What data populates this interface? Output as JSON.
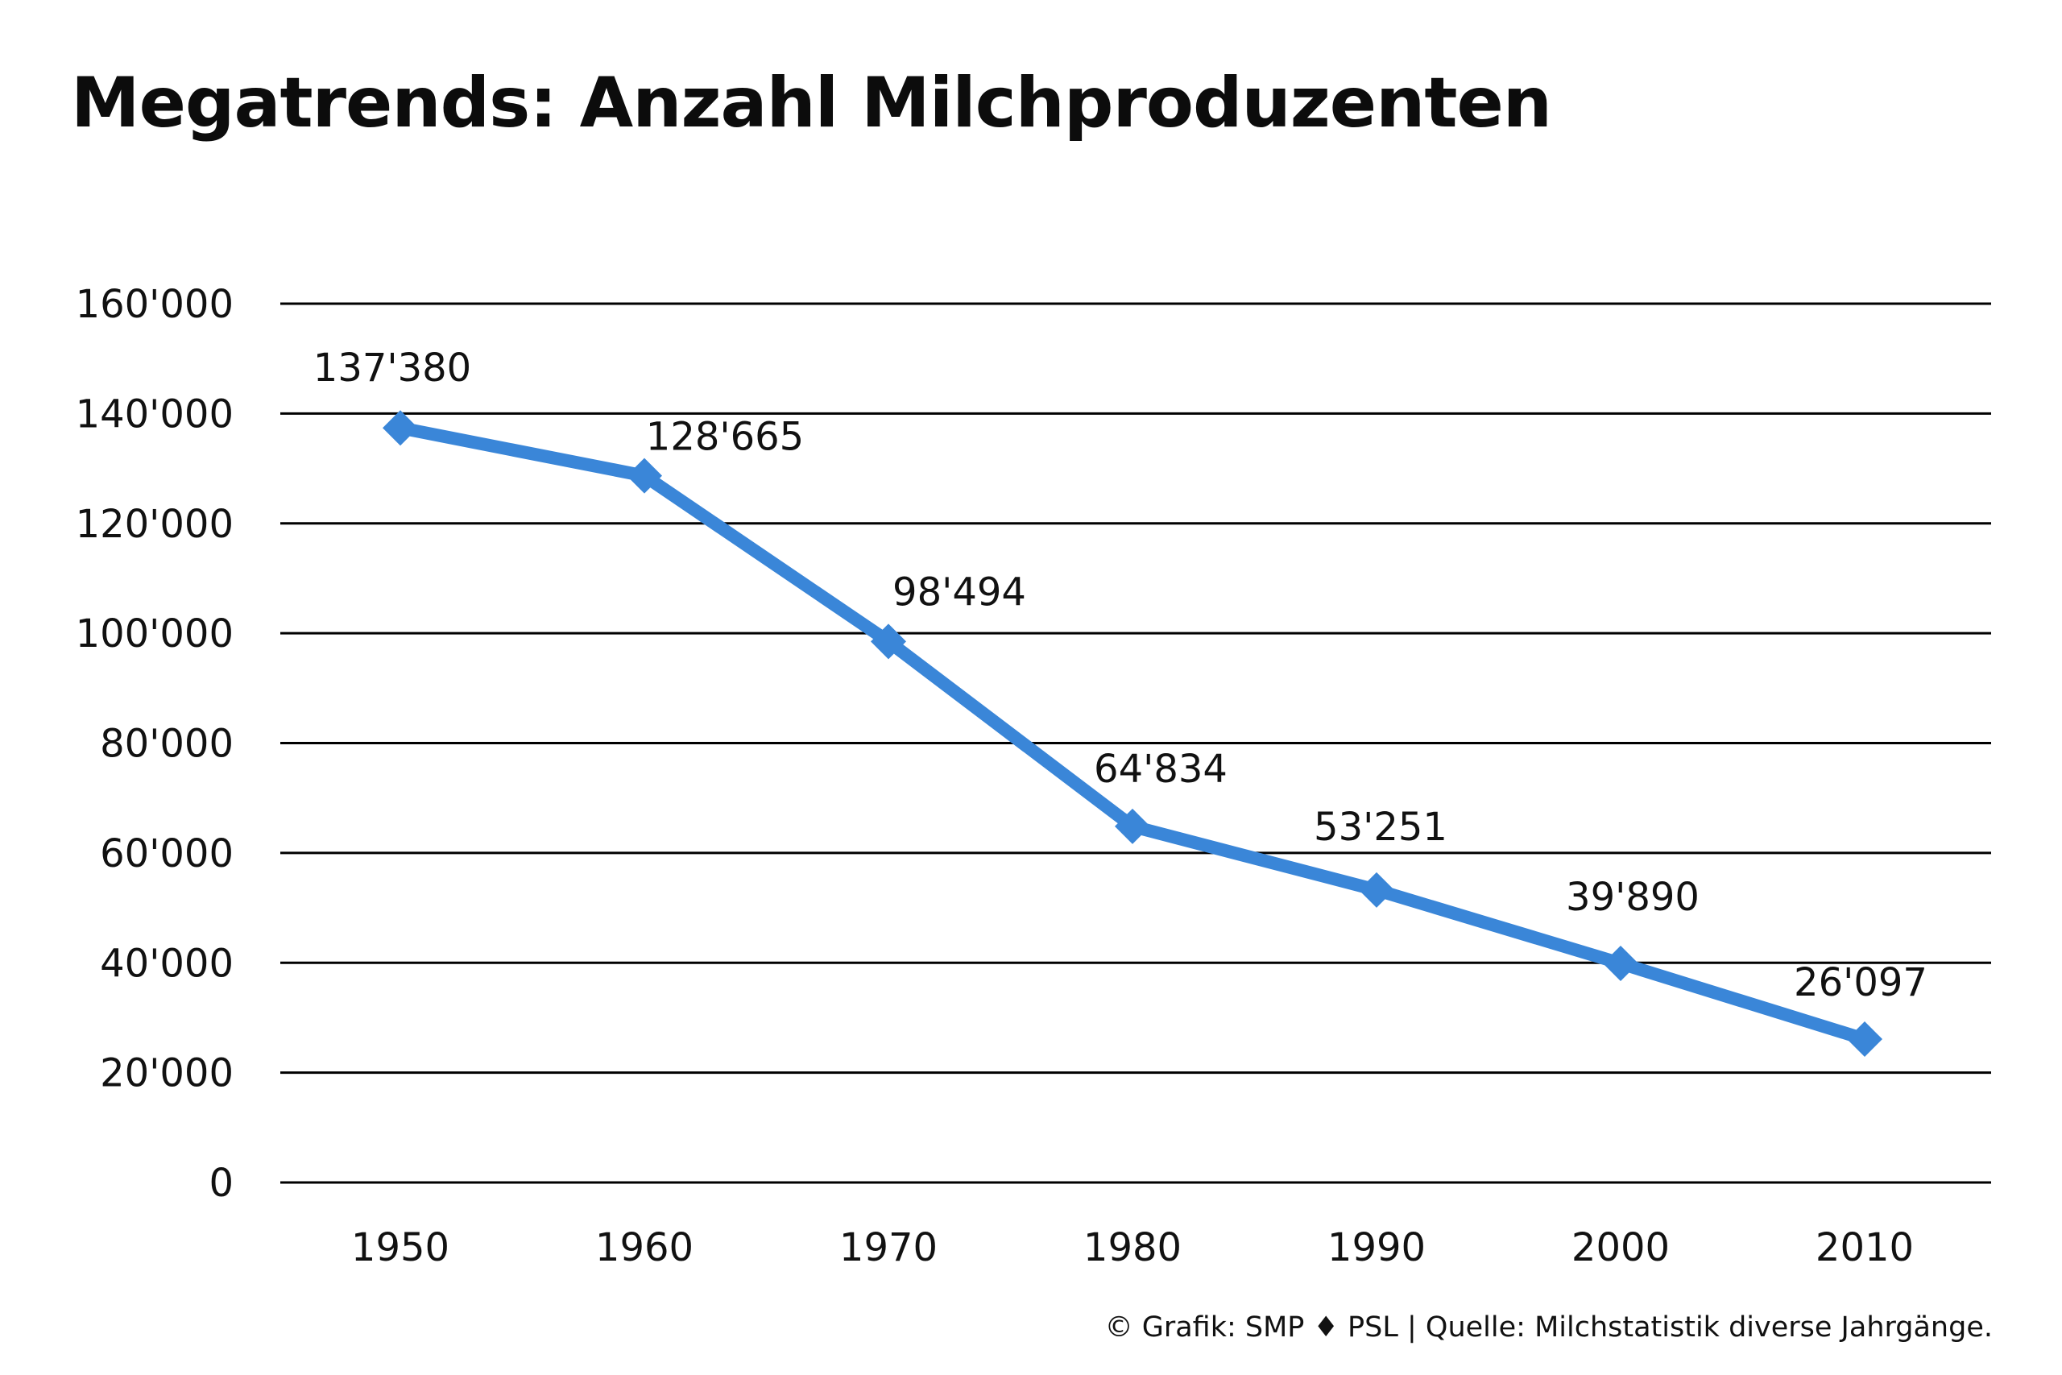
{
  "title": "Megatrends: Anzahl Milchproduzenten",
  "credit": "© Grafik: SMP ♦ PSL | Quelle: Milchstatistik diverse Jahrgänge.",
  "colors": {
    "line": "#3a86d8",
    "grid": "#000000",
    "text": "#111111"
  },
  "chart_data": {
    "type": "line",
    "x": [
      "1950",
      "1960",
      "1970",
      "1980",
      "1990",
      "2000",
      "2010"
    ],
    "series": [
      {
        "values": [
          137380,
          128665,
          98494,
          64834,
          53251,
          39890,
          26097
        ],
        "labels": [
          "137'380",
          "128'665",
          "98'494",
          "64'834",
          "53'251",
          "39'890",
          "26'097"
        ]
      }
    ],
    "yticks": [
      0,
      20000,
      40000,
      60000,
      80000,
      100000,
      120000,
      140000,
      160000
    ],
    "ytick_labels": [
      "0",
      "20'000",
      "40'000",
      "60'000",
      "80'000",
      "100'000",
      "120'000",
      "140'000",
      "160'000"
    ],
    "ylim": [
      0,
      160000
    ],
    "grid": true,
    "marker": "diamond",
    "xlabel": "",
    "ylabel": ""
  }
}
